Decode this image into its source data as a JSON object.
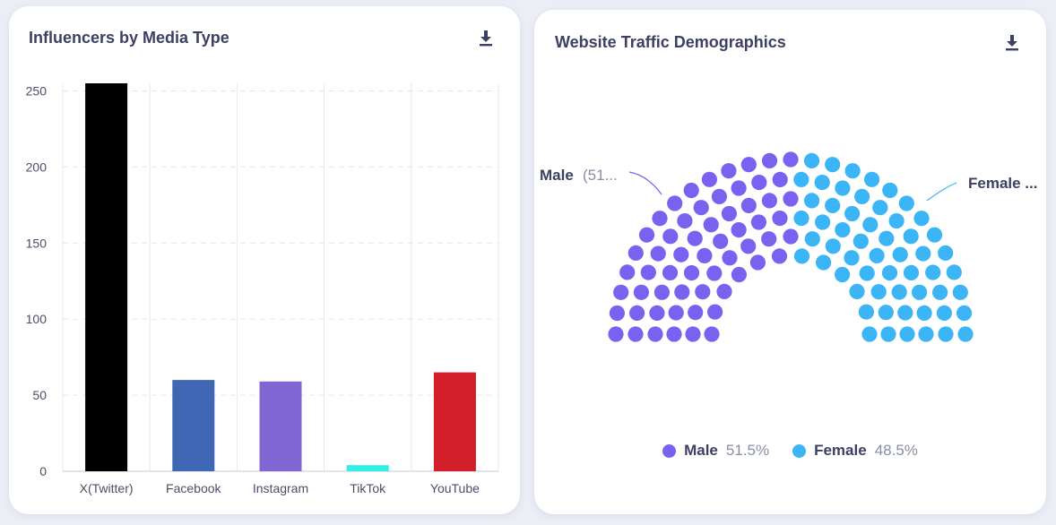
{
  "cards": {
    "media_type": {
      "title": "Influencers by Media Type",
      "download_icon": "download-icon"
    },
    "traffic": {
      "title": "Website Traffic Demographics",
      "download_icon": "download-icon",
      "callouts": {
        "male": "Male",
        "male_value": "(51...",
        "female": "Female ..."
      },
      "legend": [
        {
          "name": "Male",
          "value": "51.5%",
          "color": "#7b61f0"
        },
        {
          "name": "Female",
          "value": "48.5%",
          "color": "#3bb5f5"
        }
      ]
    }
  },
  "chart_data": [
    {
      "type": "bar",
      "title": "Influencers by Media Type",
      "categories": [
        "X(Twitter)",
        "Facebook",
        "Instagram",
        "TikTok",
        "YouTube"
      ],
      "values": [
        255,
        60,
        59,
        4,
        65
      ],
      "colors": [
        "#000000",
        "#3f67b4",
        "#7f66d3",
        "#2ff0e6",
        "#d11e28"
      ],
      "yticks": [
        "0",
        "50",
        "100",
        "150",
        "200",
        "250"
      ],
      "ylim": [
        0,
        255
      ],
      "grid": true
    },
    {
      "type": "pie",
      "subtype": "item",
      "title": "Website Traffic Demographics",
      "labels": [
        "Male",
        "Female"
      ],
      "values": [
        51.5,
        48.5
      ],
      "colors": [
        "#7b61f0",
        "#3bb5f5"
      ],
      "legend_position": "bottom"
    }
  ]
}
